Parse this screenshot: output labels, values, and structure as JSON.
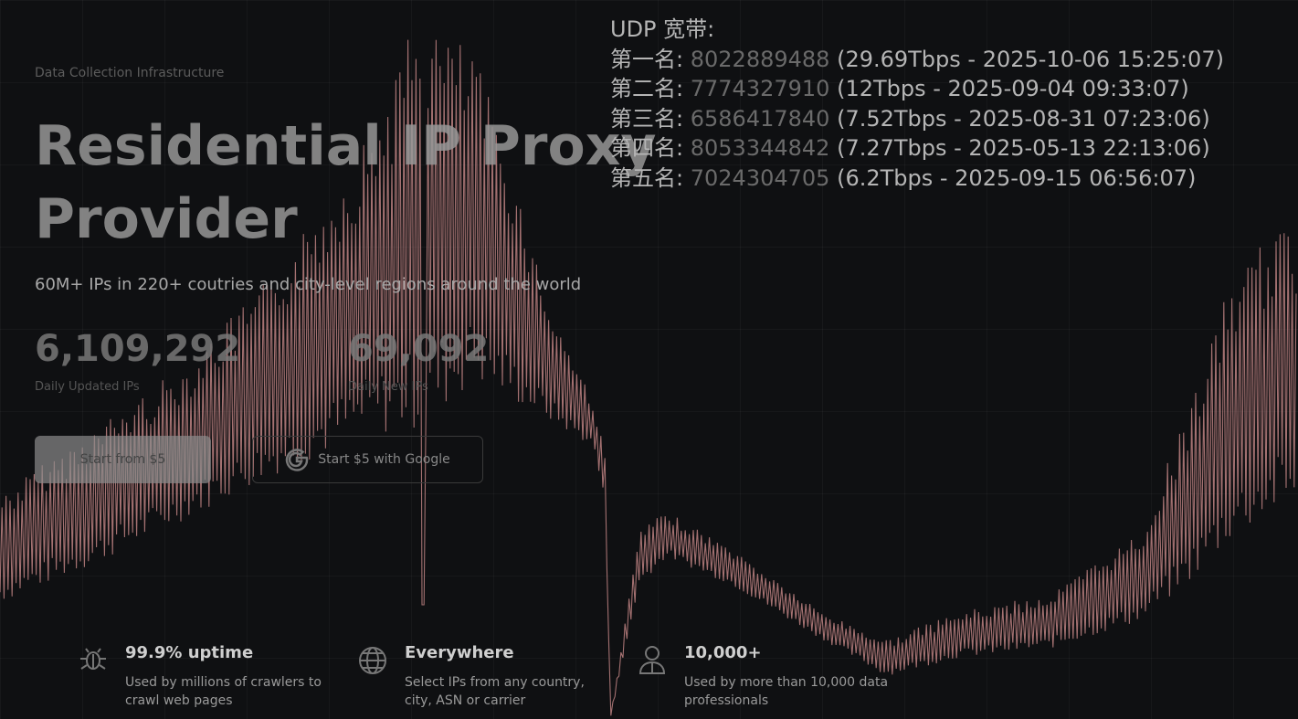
{
  "hero": {
    "eyebrow": "Data Collection Infrastructure",
    "title": "Residential IP Proxy Provider",
    "subtitle": "60M+ IPs in 220+ coutries and city-level regions around the world",
    "stats": [
      {
        "value": "6,109,292",
        "label": "Daily Updated IPs"
      },
      {
        "value": "69,092",
        "label": "Daily New IPs"
      }
    ],
    "buttons": [
      {
        "label": "Start from $5"
      },
      {
        "label": "Start $5 with Google"
      }
    ]
  },
  "udp": {
    "heading": "UDP 宽带:",
    "rows": [
      {
        "rank": "第一名:",
        "id": "8022889488",
        "detail": "(29.69Tbps - 2025-10-06 15:25:07)"
      },
      {
        "rank": "第二名:",
        "id": "7774327910",
        "detail": "(12Tbps - 2025-09-04 09:33:07)"
      },
      {
        "rank": "第三名:",
        "id": "6586417840",
        "detail": "(7.52Tbps - 2025-08-31 07:23:06)"
      },
      {
        "rank": "第四名:",
        "id": "8053344842",
        "detail": "(7.27Tbps - 2025-05-13 22:13:06)"
      },
      {
        "rank": "第五名:",
        "id": "7024304705",
        "detail": "(6.2Tbps - 2025-09-15 06:56:07)"
      }
    ]
  },
  "features": [
    {
      "title": "99.9% uptime",
      "description": "Used by millions of crawlers to crawl web pages"
    },
    {
      "title": "Everywhere",
      "description": "Select IPs from any country, city, ASN or carrier"
    },
    {
      "title": "10,000+",
      "description": "Used by more than 10,000 data professionals"
    }
  ]
}
